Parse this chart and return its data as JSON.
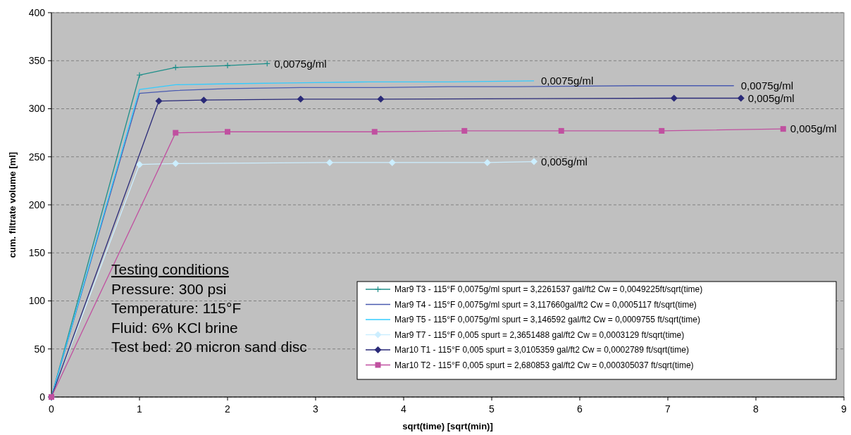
{
  "chart_data": {
    "type": "line",
    "xlabel": "sqrt(time) [sqrt(min)]",
    "ylabel": "cum. filtrate volume [ml]",
    "xlim": [
      0,
      9
    ],
    "xticks": [
      0,
      1,
      2,
      3,
      4,
      5,
      6,
      7,
      8,
      9
    ],
    "ylim": [
      0,
      400
    ],
    "yticks": [
      0,
      50,
      100,
      150,
      200,
      250,
      300,
      350,
      400
    ],
    "grid": "y",
    "legend": "bottom right",
    "line_style": "solid",
    "series": [
      {
        "name": "Mar9 T3 - 115°F 0,0075g/ml spurt = 3,2261537 gal/ft2 Cw = 0,0049225ft/sqrt(time)",
        "color": "#1f8f8a",
        "marker": "cross",
        "x": [
          0,
          1,
          1.41,
          2,
          2.45
        ],
        "values": [
          0,
          335,
          343,
          345,
          347
        ]
      },
      {
        "name": "Mar9 T4 - 115°F 0,0075g/ml spurt = 3,117660gal/ft2 Cw = 0,0005117 ft/sqrt(time)",
        "color": "#4a5bb0",
        "marker": "none",
        "x": [
          0,
          1,
          1.41,
          2,
          2.83,
          3.74,
          4.5,
          5.29,
          6.63,
          7.55,
          7.75
        ],
        "values": [
          0,
          316,
          319,
          321,
          322,
          322,
          323,
          323,
          324,
          324,
          324
        ]
      },
      {
        "name": "Mar9 T5 - 115°F 0,0075g/ml spurt = 3,146592 gal/ft2 Cw = 0,0009755 ft/sqrt(time)",
        "color": "#33ccff",
        "marker": "none",
        "x": [
          0,
          1,
          1.41,
          2,
          2.83,
          3.61,
          4.5,
          5.48
        ],
        "values": [
          0,
          320,
          325,
          326,
          327,
          328,
          328,
          329
        ]
      },
      {
        "name": "Mar9 T7 - 115°F 0,005 spurt = 2,3651488 gal/ft2 Cw = 0,0003129 ft/sqrt(time)",
        "color": "#cceeff",
        "marker": "diamond",
        "x": [
          0,
          1,
          1.41,
          3.16,
          3.87,
          4.95,
          5.48
        ],
        "values": [
          0,
          242,
          243,
          244,
          244,
          244,
          245
        ]
      },
      {
        "name": "Mar10 T1 - 115°F 0,005 spurt = 3,0105359 gal/ft2 Cw = 0,0002789 ft/sqrt(time)",
        "color": "#2a2a78",
        "marker": "diamond",
        "x": [
          0,
          1.22,
          1.73,
          2.83,
          3.74,
          7.07,
          7.83
        ],
        "values": [
          0,
          308,
          309,
          310,
          310,
          311,
          311
        ]
      },
      {
        "name": "Mar10 T2 - 115°F 0,005 spurt = 2,680853 gal/ft2 Cw = 0,000305037 ft/sqrt(time)",
        "color": "#c050a0",
        "marker": "square",
        "x": [
          0,
          1.41,
          2,
          3.67,
          4.69,
          5.79,
          6.93,
          8.31
        ],
        "values": [
          0,
          275,
          276,
          276,
          277,
          277,
          277,
          279
        ]
      }
    ],
    "annotations": [
      {
        "text": "0,0075g/ml",
        "x": 2.45,
        "y": 347
      },
      {
        "text": "0,0075g/ml",
        "x": 5.48,
        "y": 329
      },
      {
        "text": "0,0075g/ml",
        "x": 7.75,
        "y": 324
      },
      {
        "text": "0,005g/ml",
        "x": 7.83,
        "y": 311
      },
      {
        "text": "0,005g/ml",
        "x": 8.31,
        "y": 279
      },
      {
        "text": "0,005g/ml",
        "x": 5.48,
        "y": 245
      },
      "Testing conditions",
      "Pressure: 300 psi",
      "Temperature: 115°F",
      "Fluid: 6% KCl brine",
      "Test bed: 20 micron sand disc"
    ]
  }
}
